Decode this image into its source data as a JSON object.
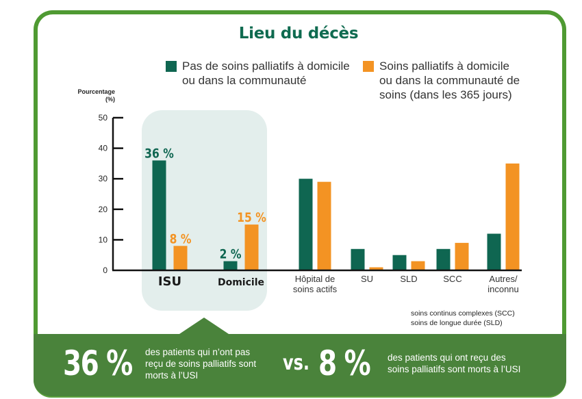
{
  "colors": {
    "series1": "#0f6651",
    "series2": "#f39323",
    "frame": "#4f9a32",
    "panel": "#4a833b",
    "title": "#0f6b50",
    "highlight": "#e3eeec"
  },
  "chart_data": {
    "type": "bar",
    "title": "Lieu du décès",
    "ylabel": "Pourcentage",
    "ylabel_unit": "(%)",
    "ylim": [
      0,
      50
    ],
    "yticks": [
      0,
      10,
      20,
      30,
      40,
      50
    ],
    "grid": false,
    "legend_position": "top",
    "categories": [
      "ISU",
      "Domicile",
      "Hôpital de soins actifs",
      "SU",
      "SLD",
      "SCC",
      "Autres/ inconnu"
    ],
    "category_lines": [
      [
        "ISU"
      ],
      [
        "Domicile"
      ],
      [
        "Hôpital de",
        "soins actifs"
      ],
      [
        "SU"
      ],
      [
        "SLD"
      ],
      [
        "SCC"
      ],
      [
        "Autres/",
        "inconnu"
      ]
    ],
    "highlighted_categories": [
      "ISU",
      "Domicile"
    ],
    "series": [
      {
        "name": "Pas de soins palliatifs à domicile ou dans la communauté",
        "legend_lines": [
          "Pas de soins palliatifs à domicile",
          "ou dans la communauté"
        ],
        "values": [
          36,
          2,
          30,
          7,
          5,
          7,
          12
        ],
        "labels": [
          "36 %",
          "2 %",
          null,
          null,
          null,
          null,
          null
        ]
      },
      {
        "name": "Soins palliatifs à domicile ou dans la communauté de soins (dans les 365 jours)",
        "legend_lines": [
          "Soins palliatifs à domicile",
          "ou dans la communauté de",
          "soins (dans les 365 jours)"
        ],
        "values": [
          8,
          15,
          29,
          1,
          3,
          9,
          35
        ],
        "labels": [
          "8 %",
          "15 %",
          null,
          null,
          null,
          null,
          null
        ]
      }
    ],
    "notes": [
      "soins continus complexes (SCC)",
      "soins de longue durée (SLD)"
    ]
  },
  "summary": {
    "left_value": "36 %",
    "left_text": [
      "des patients qui n’ont pas",
      "reçu de soins palliatifs sont",
      "morts à l’USI"
    ],
    "vs": "vs.",
    "right_value": "8 %",
    "right_text": [
      "des patients qui ont reçu des",
      "soins palliatifs sont morts à l’USI"
    ]
  }
}
